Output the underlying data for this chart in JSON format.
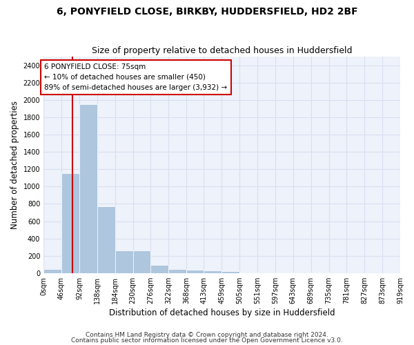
{
  "title": "6, PONYFIELD CLOSE, BIRKBY, HUDDERSFIELD, HD2 2BF",
  "subtitle": "Size of property relative to detached houses in Huddersfield",
  "xlabel": "Distribution of detached houses by size in Huddersfield",
  "ylabel": "Number of detached properties",
  "footnote1": "Contains HM Land Registry data © Crown copyright and database right 2024.",
  "footnote2": "Contains public sector information licensed under the Open Government Licence v3.0.",
  "bar_edges": [
    0,
    46,
    92,
    138,
    184,
    230,
    276,
    322,
    368,
    413,
    459,
    505,
    551,
    597,
    643,
    689,
    735,
    781,
    827,
    873,
    919
  ],
  "bar_heights": [
    50,
    1150,
    1950,
    775,
    260,
    260,
    95,
    50,
    40,
    30,
    20,
    10,
    5,
    5,
    5,
    3,
    2,
    0,
    0,
    0
  ],
  "bar_color": "#aec6de",
  "grid_color": "#d8dff0",
  "bg_color": "#eef2fa",
  "vline_x": 75,
  "vline_color": "#cc0000",
  "annotation_title": "6 PONYFIELD CLOSE: 75sqm",
  "annotation_line1": "← 10% of detached houses are smaller (450)",
  "annotation_line2": "89% of semi-detached houses are larger (3,932) →",
  "ylim": [
    0,
    2500
  ],
  "yticks": [
    0,
    200,
    400,
    600,
    800,
    1000,
    1200,
    1400,
    1600,
    1800,
    2000,
    2200,
    2400
  ],
  "xtick_labels": [
    "0sqm",
    "46sqm",
    "92sqm",
    "138sqm",
    "184sqm",
    "230sqm",
    "276sqm",
    "322sqm",
    "368sqm",
    "413sqm",
    "459sqm",
    "505sqm",
    "551sqm",
    "597sqm",
    "643sqm",
    "689sqm",
    "735sqm",
    "781sqm",
    "827sqm",
    "873sqm",
    "919sqm"
  ],
  "title_fontsize": 10,
  "subtitle_fontsize": 9,
  "axis_label_fontsize": 8.5,
  "tick_fontsize": 7,
  "annotation_fontsize": 7.5,
  "footnote_fontsize": 6.5
}
